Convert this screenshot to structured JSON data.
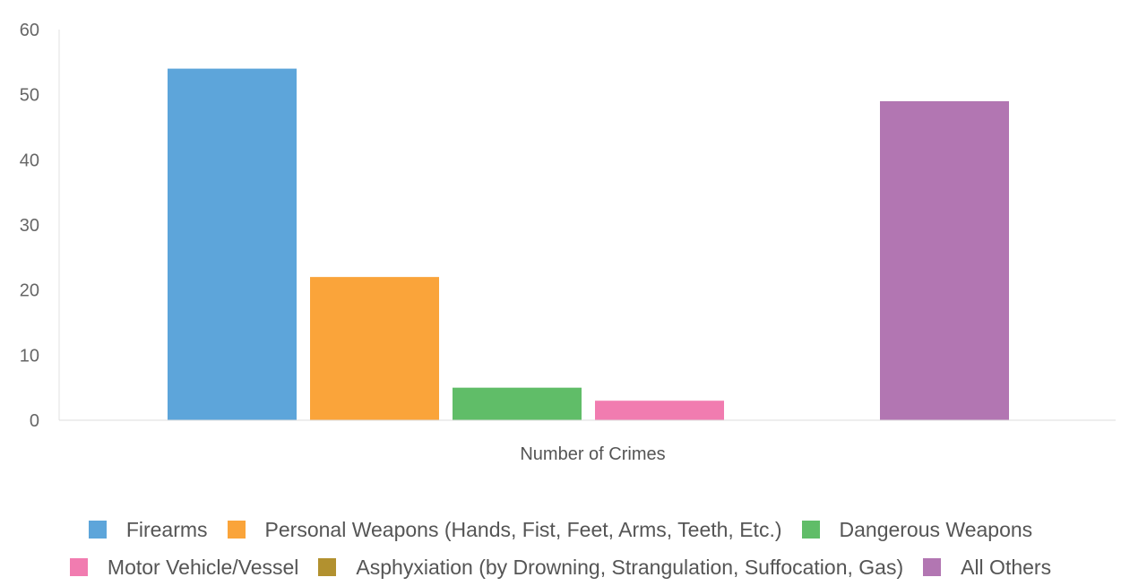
{
  "chart_data": {
    "type": "bar",
    "xlabel": "Number of Crimes",
    "categories": [
      "Number of Crimes"
    ],
    "ylim": [
      0,
      60
    ],
    "yticks": [
      0,
      10,
      20,
      30,
      40,
      50,
      60
    ],
    "grid": false,
    "legend_position": "bottom",
    "series": [
      {
        "name": "Firearms",
        "values": [
          54
        ],
        "color": "#5da5da"
      },
      {
        "name": "Personal Weapons (Hands, Fist, Feet, Arms, Teeth, Etc.)",
        "values": [
          22
        ],
        "color": "#faa43a"
      },
      {
        "name": "Dangerous Weapons",
        "values": [
          5
        ],
        "color": "#60bd68"
      },
      {
        "name": "Motor Vehicle/Vessel",
        "values": [
          3
        ],
        "color": "#f17cb0"
      },
      {
        "name": "Asphyxiation (by Drowning, Strangulation, Suffocation, Gas)",
        "values": [
          0
        ],
        "color": "#b2912f"
      },
      {
        "name": "All Others",
        "values": [
          49
        ],
        "color": "#b276b2"
      }
    ]
  }
}
